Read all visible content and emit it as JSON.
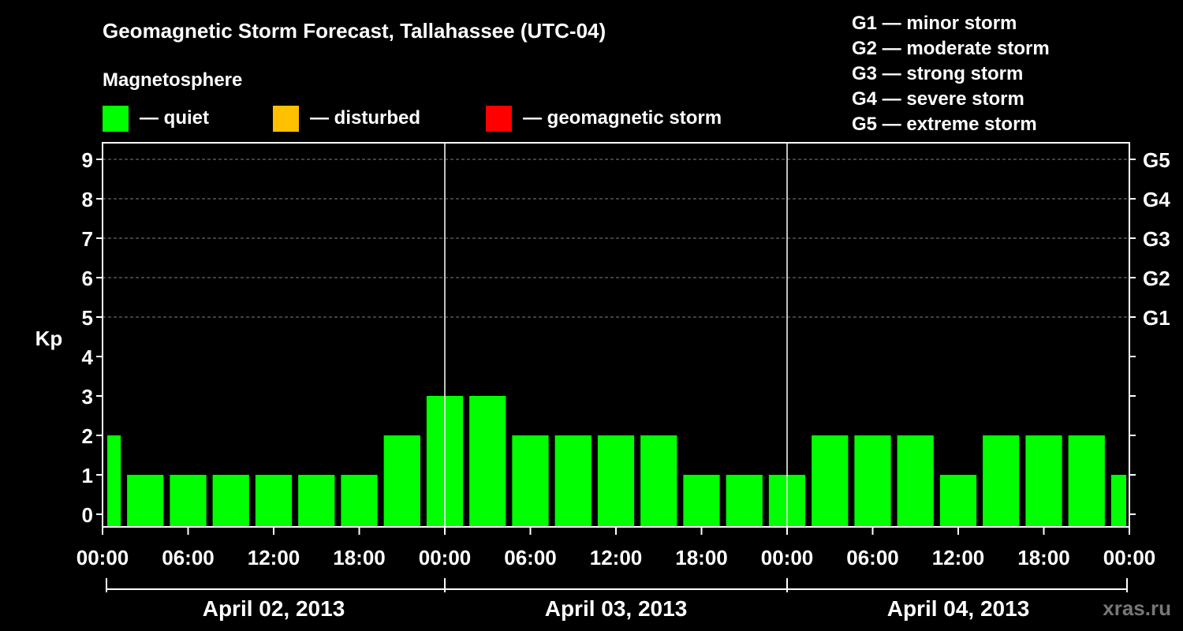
{
  "chart_data": {
    "type": "bar",
    "title": "Geomagnetic Storm Forecast, Tallahassee (UTC-04)",
    "ylabel": "Kp",
    "ylim": [
      0,
      9
    ],
    "yticks": [
      "0",
      "1",
      "2",
      "3",
      "4",
      "5",
      "6",
      "7",
      "8",
      "9"
    ],
    "right_axis": [
      {
        "kp": 5,
        "label": "G1"
      },
      {
        "kp": 6,
        "label": "G2"
      },
      {
        "kp": 7,
        "label": "G3"
      },
      {
        "kp": 8,
        "label": "G4"
      },
      {
        "kp": 9,
        "label": "G5"
      }
    ],
    "storm_scale": [
      "G1 — minor storm",
      "G2 — moderate storm",
      "G3 — strong storm",
      "G4 — severe storm",
      "G5 — extreme storm"
    ],
    "legend": {
      "title": "Magnetosphere",
      "items": [
        {
          "label": "— quiet",
          "color": "#00ff00"
        },
        {
          "label": "— disturbed",
          "color": "#ffc000"
        },
        {
          "label": "— geomagnetic storm",
          "color": "#ff0000"
        }
      ]
    },
    "x_ticks": [
      "00:00",
      "06:00",
      "12:00",
      "18:00",
      "00:00",
      "06:00",
      "12:00",
      "18:00",
      "00:00",
      "06:00",
      "12:00",
      "18:00",
      "00:00"
    ],
    "days": [
      "April 02, 2013",
      "April 03, 2013",
      "April 04, 2013"
    ],
    "interval_hours": 3,
    "start_hour": 0,
    "values": [
      2,
      1,
      1,
      1,
      1,
      1,
      1,
      2,
      3,
      3,
      2,
      2,
      2,
      2,
      1,
      1,
      1,
      2,
      2,
      2,
      1,
      2,
      2,
      2,
      1
    ],
    "bar_color": "#00ff00",
    "grid": true
  },
  "watermark": "xras.ru"
}
